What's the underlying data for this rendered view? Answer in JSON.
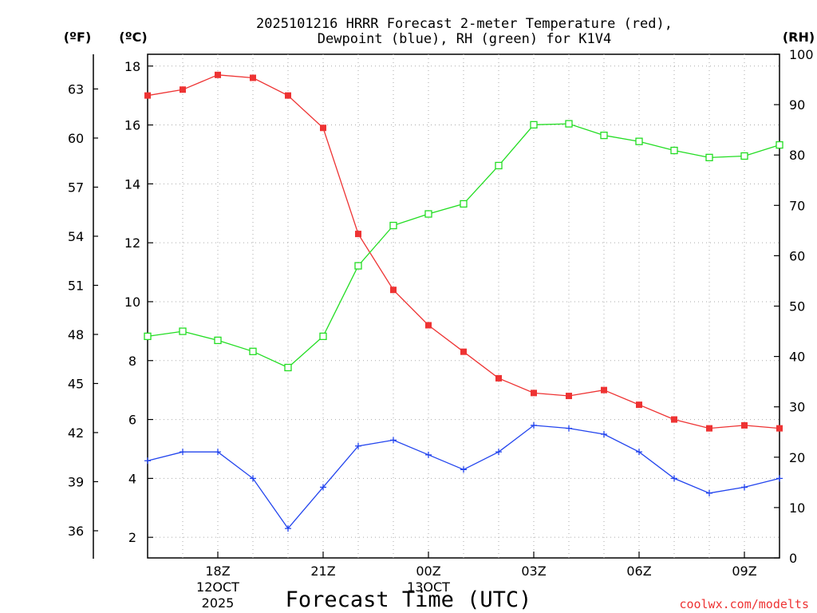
{
  "chart_data": {
    "type": "line",
    "title_line1": "2025101216 HRRR Forecast 2-meter Temperature (red),",
    "title_line2": "Dewpoint (blue), RH (green) for K1V4",
    "xlabel": "Forecast Time (UTC)",
    "credit": "coolwx.com/modelts",
    "unit_labels": {
      "fahrenheit": "(ºF)",
      "celsius": "(ºC)",
      "rh": "(RH)"
    },
    "x_hours": [
      0,
      1,
      2,
      3,
      4,
      5,
      6,
      7,
      8,
      9,
      10,
      11,
      12,
      13,
      14,
      15,
      16,
      17,
      18
    ],
    "x_start_hour_utc": 16,
    "xlim": [
      0,
      18
    ],
    "x_ticks": [
      {
        "hour": 2,
        "line1": "18Z",
        "line2": "12OCT",
        "line3": "2025"
      },
      {
        "hour": 5,
        "line1": "21Z"
      },
      {
        "hour": 8,
        "line1": "00Z",
        "line2": "13OCT"
      },
      {
        "hour": 11,
        "line1": "03Z"
      },
      {
        "hour": 14,
        "line1": "06Z"
      },
      {
        "hour": 17,
        "line1": "09Z"
      }
    ],
    "celsius_axis": {
      "ylim": [
        1.3,
        18.4
      ],
      "ticks": [
        2,
        4,
        6,
        8,
        10,
        12,
        14,
        16,
        18
      ]
    },
    "fahrenheit_axis": {
      "ticks": [
        36,
        39,
        42,
        45,
        48,
        51,
        54,
        57,
        60,
        63
      ]
    },
    "rh_axis": {
      "ylim": [
        0,
        100
      ],
      "ticks": [
        0,
        10,
        20,
        30,
        40,
        50,
        60,
        70,
        80,
        90,
        100
      ]
    },
    "series": [
      {
        "name": "2-meter Temperature",
        "axis": "celsius",
        "color": "#ee3333",
        "marker": "filled-square",
        "values": [
          17.0,
          17.2,
          17.7,
          17.6,
          17.0,
          15.9,
          12.3,
          10.4,
          9.2,
          8.3,
          7.4,
          6.9,
          6.8,
          7.0,
          6.5,
          6.0,
          5.7,
          5.8,
          5.7
        ]
      },
      {
        "name": "Dewpoint",
        "axis": "celsius",
        "color": "#2244ee",
        "marker": "plus",
        "values": [
          4.6,
          4.9,
          4.9,
          4.0,
          2.3,
          3.7,
          5.1,
          5.3,
          4.8,
          4.3,
          4.9,
          5.8,
          5.7,
          5.5,
          4.9,
          4.0,
          3.5,
          3.7,
          4.0
        ]
      },
      {
        "name": "RH",
        "axis": "rh",
        "color": "#22dd22",
        "marker": "open-square",
        "values": [
          44,
          45,
          43.2,
          41,
          37.8,
          44,
          58,
          66,
          68.3,
          70.3,
          77.9,
          86,
          86.2,
          83.9,
          82.7,
          80.9,
          79.5,
          79.8,
          82
        ]
      }
    ]
  }
}
